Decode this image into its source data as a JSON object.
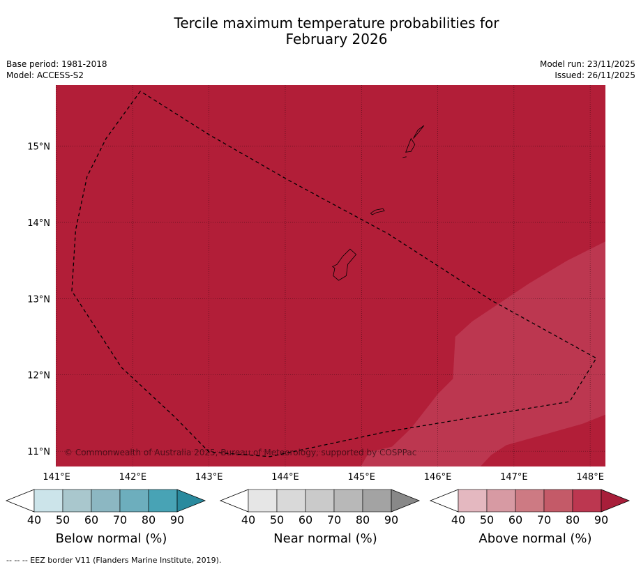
{
  "title": {
    "line1": "Tercile maximum temperature probabilities for",
    "line2": "February 2026"
  },
  "meta": {
    "base_period": "Base period: 1981-2018",
    "model": "Model: ACCESS-S2",
    "model_run": "Model run: 23/11/2025",
    "issued": "Issued: 26/11/2025"
  },
  "copyright": "© Commonwealth of Australia 2025, Bureau of Meteorology, supported by COSPPac",
  "footnote": "--  --  -- EEZ border V11 (Flanders Marine Institute, 2019).",
  "colors": {
    "above_80_90": "#b21e38",
    "above_70_80": "#bc3750"
  },
  "chart_data": {
    "type": "map",
    "title": "Tercile maximum temperature probabilities for February 2026",
    "lon_range": [
      140.99,
      148.2
    ],
    "lat_range": [
      10.8,
      15.8
    ],
    "x_ticks": [
      {
        "value": 141,
        "label": "141°E"
      },
      {
        "value": 142,
        "label": "142°E"
      },
      {
        "value": 143,
        "label": "143°E"
      },
      {
        "value": 144,
        "label": "144°E"
      },
      {
        "value": 145,
        "label": "145°E"
      },
      {
        "value": 146,
        "label": "146°E"
      },
      {
        "value": 147,
        "label": "147°E"
      },
      {
        "value": 148,
        "label": "148°E"
      }
    ],
    "y_ticks": [
      {
        "value": 15,
        "label": "15°N"
      },
      {
        "value": 14,
        "label": "14°N"
      },
      {
        "value": 13,
        "label": "13°N"
      },
      {
        "value": 12,
        "label": "12°N"
      },
      {
        "value": 11,
        "label": "11°N"
      }
    ],
    "background_category": "Above normal 80-90%",
    "regions": [
      {
        "category": "Above normal 70-80%",
        "color": "#bc3750",
        "lonlat": [
          [
            144.99,
            10.8
          ],
          [
            145.1,
            10.99
          ],
          [
            145.4,
            11.06
          ],
          [
            145.65,
            11.3
          ],
          [
            146.0,
            11.75
          ],
          [
            146.2,
            11.95
          ],
          [
            146.23,
            12.5
          ],
          [
            146.45,
            12.7
          ],
          [
            147.2,
            13.2
          ],
          [
            147.7,
            13.5
          ],
          [
            148.2,
            13.75
          ],
          [
            148.2,
            11.48
          ],
          [
            147.9,
            11.36
          ],
          [
            147.4,
            11.22
          ],
          [
            146.9,
            11.08
          ],
          [
            146.7,
            10.95
          ],
          [
            146.56,
            10.8
          ]
        ]
      }
    ],
    "eez_border": [
      [
        142.1,
        15.72
      ],
      [
        141.65,
        15.1
      ],
      [
        141.4,
        14.6
      ],
      [
        141.25,
        13.9
      ],
      [
        141.2,
        13.1
      ],
      [
        141.85,
        12.1
      ],
      [
        142.55,
        11.45
      ],
      [
        143.0,
        10.99
      ],
      [
        143.8,
        10.93
      ],
      [
        145.3,
        11.25
      ],
      [
        146.5,
        11.45
      ],
      [
        147.73,
        11.65
      ],
      [
        148.08,
        12.22
      ],
      [
        146.7,
        12.98
      ],
      [
        145.35,
        13.85
      ],
      [
        144.05,
        14.55
      ],
      [
        143.0,
        15.15
      ],
      [
        142.1,
        15.72
      ]
    ],
    "islands": [
      {
        "name": "Guam",
        "lonlat": [
          [
            144.62,
            13.42
          ],
          [
            144.68,
            13.45
          ],
          [
            144.75,
            13.55
          ],
          [
            144.85,
            13.65
          ],
          [
            144.93,
            13.58
          ],
          [
            144.82,
            13.45
          ],
          [
            144.8,
            13.3
          ],
          [
            144.7,
            13.24
          ],
          [
            144.63,
            13.3
          ],
          [
            144.65,
            13.4
          ]
        ]
      },
      {
        "name": "Rota",
        "lonlat": [
          [
            145.12,
            14.12
          ],
          [
            145.18,
            14.16
          ],
          [
            145.28,
            14.18
          ],
          [
            145.3,
            14.15
          ],
          [
            145.2,
            14.13
          ],
          [
            145.14,
            14.1
          ]
        ]
      },
      {
        "name": "Tinian",
        "lonlat": [
          [
            145.58,
            14.92
          ],
          [
            145.65,
            15.1
          ],
          [
            145.7,
            15.02
          ],
          [
            145.65,
            14.93
          ]
        ]
      },
      {
        "name": "Saipan",
        "lonlat": [
          [
            145.68,
            15.1
          ],
          [
            145.75,
            15.18
          ],
          [
            145.82,
            15.27
          ],
          [
            145.74,
            15.21
          ]
        ]
      },
      {
        "name": "Aguijan",
        "lonlat": [
          [
            145.54,
            14.85
          ],
          [
            145.59,
            14.86
          ]
        ]
      }
    ],
    "legends": [
      {
        "label": "Below normal (%)",
        "tick_labels": [
          "40",
          "50",
          "60",
          "70",
          "80",
          "90"
        ],
        "colors": [
          "#cce4ea",
          "#a9c7cd",
          "#8cb7c2",
          "#6daebd",
          "#48a3b5",
          "#2a8a9e"
        ]
      },
      {
        "label": "Near normal (%)",
        "tick_labels": [
          "40",
          "50",
          "60",
          "70",
          "80",
          "90"
        ],
        "colors": [
          "#e6e6e6",
          "#d9d9d9",
          "#cacaca",
          "#b8b8b8",
          "#a3a3a3",
          "#888888"
        ]
      },
      {
        "label": "Above normal (%)",
        "tick_labels": [
          "40",
          "50",
          "60",
          "70",
          "80",
          "90"
        ],
        "colors": [
          "#e4b8c0",
          "#d79aa3",
          "#cd7a83",
          "#c45a68",
          "#bc3750",
          "#a81e3a"
        ]
      }
    ]
  }
}
